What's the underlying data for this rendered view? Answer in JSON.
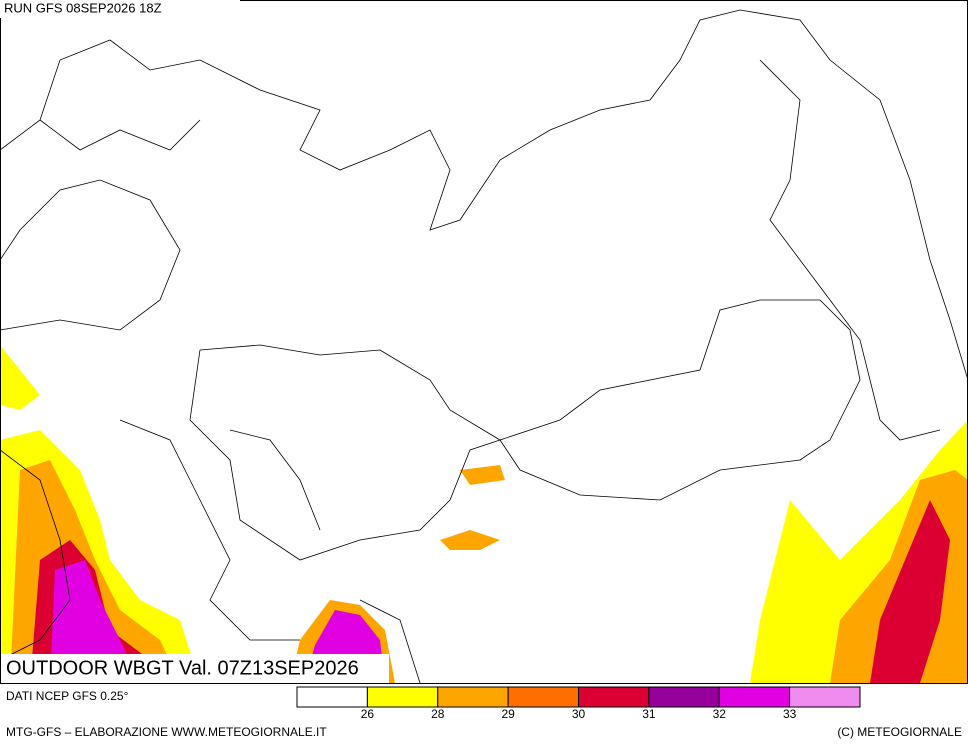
{
  "run": "RUN GFS 08SEP2026 18Z",
  "title": "OUTDOOR WBGT Val. 07Z13SEP2026",
  "source": "DATI NCEP GFS 0.25°",
  "legend": {
    "colors": [
      "#ffffff",
      "#ffff00",
      "#ffa500",
      "#ff6e00",
      "#dc0032",
      "#96009b",
      "#e100e1",
      "#f08cf0"
    ],
    "ticks": [
      26,
      28,
      29,
      30,
      31,
      32,
      33
    ]
  },
  "footer_left": "MTG-GFS – ELABORAZIONE WWW.METEOGIORNALE.IT",
  "footer_right": "(C) METEOGIORNALE"
}
